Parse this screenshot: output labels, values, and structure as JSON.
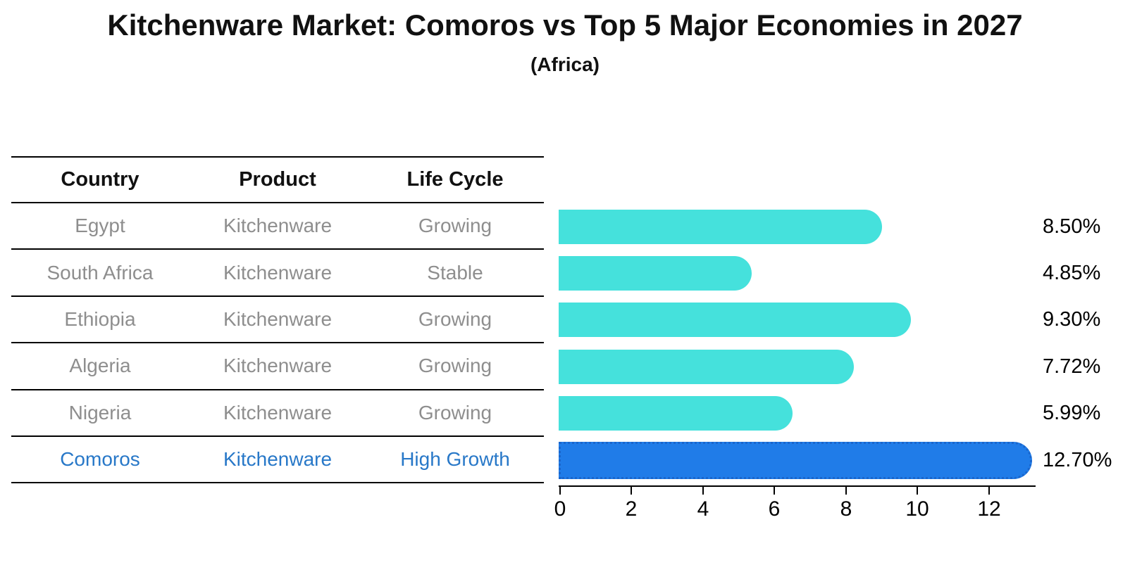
{
  "title": "Kitchenware Market: Comoros vs Top 5 Major Economies in 2027",
  "subtitle": "(Africa)",
  "table": {
    "headers": [
      "Country",
      "Product",
      "Life Cycle"
    ],
    "rows": [
      {
        "country": "Egypt",
        "product": "Kitchenware",
        "life_cycle": "Growing",
        "value_label": "8.50%",
        "highlight": false
      },
      {
        "country": "South Africa",
        "product": "Kitchenware",
        "life_cycle": "Stable",
        "value_label": "4.85%",
        "highlight": false
      },
      {
        "country": "Ethiopia",
        "product": "Kitchenware",
        "life_cycle": "Growing",
        "value_label": "9.30%",
        "highlight": false
      },
      {
        "country": "Algeria",
        "product": "Kitchenware",
        "life_cycle": "Growing",
        "value_label": "7.72%",
        "highlight": false
      },
      {
        "country": "Nigeria",
        "product": "Kitchenware",
        "life_cycle": "Growing",
        "value_label": "5.99%",
        "highlight": false
      },
      {
        "country": "Comoros",
        "product": "Kitchenware",
        "life_cycle": "High Growth",
        "value_label": "12.70%",
        "highlight": true
      }
    ]
  },
  "chart_data": {
    "type": "bar",
    "orientation": "horizontal",
    "title": "Kitchenware Market: Comoros vs Top 5 Major Economies in 2027",
    "subtitle": "(Africa)",
    "categories": [
      "Egypt",
      "South Africa",
      "Ethiopia",
      "Algeria",
      "Nigeria",
      "Comoros"
    ],
    "values": [
      8.5,
      4.85,
      9.3,
      7.72,
      5.99,
      12.7
    ],
    "value_labels": [
      "8.50%",
      "4.85%",
      "9.30%",
      "7.72%",
      "5.99%",
      "12.70%"
    ],
    "xticks": [
      0,
      2,
      4,
      6,
      8,
      10,
      12
    ],
    "xlim": [
      0,
      13.35
    ],
    "grid": false,
    "legend": false,
    "highlight_index": 5
  },
  "colors": {
    "bar": "#45E1DC",
    "highlight_bar": "#207CE8",
    "highlight_border": "#1A66CC",
    "highlight_text": "#2878C8",
    "muted_text": "#8E8E8E",
    "header_text": "#111111",
    "line": "#000000"
  }
}
